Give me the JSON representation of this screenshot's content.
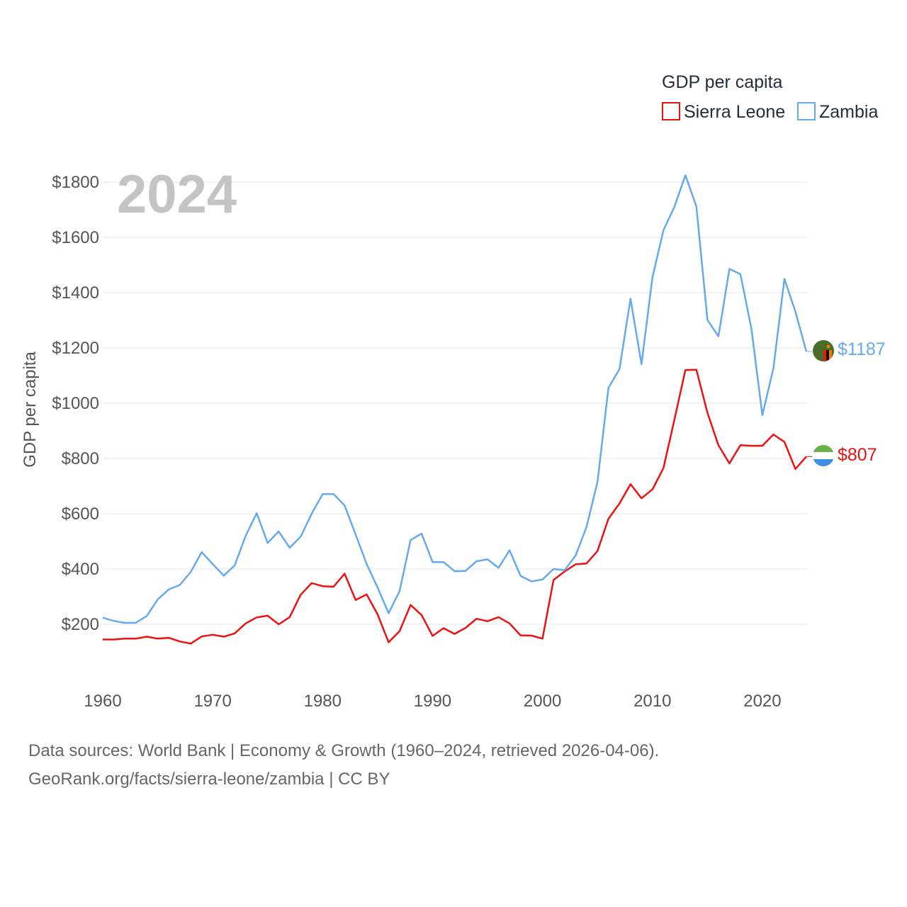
{
  "legend": {
    "title": "GDP per capita",
    "items": [
      {
        "label": "Sierra Leone",
        "color": "#ee1111"
      },
      {
        "label": "Zambia",
        "color": "#66aaee"
      }
    ]
  },
  "year_label": "2024",
  "sources": {
    "line1": "Data sources: World Bank | Economy & Growth (1960–2024, retrieved 2026-04-06).",
    "line2": "GeoRank.org/facts/sierra-leone/zambia | CC BY"
  },
  "end_labels": {
    "sierra_leone": "$807",
    "zambia": "$1187"
  },
  "flags": {
    "sierra_leone": "sierra-leone-flag-icon",
    "zambia": "zambia-flag-icon"
  },
  "chart_data": {
    "type": "line",
    "title": "",
    "xlabel": "",
    "ylabel": "GDP per capita",
    "xlim": [
      1960,
      2024
    ],
    "ylim": [
      0,
      1850
    ],
    "x_ticks": [
      1960,
      1970,
      1980,
      1990,
      2000,
      2010,
      2020
    ],
    "y_ticks": [
      200,
      400,
      600,
      800,
      1000,
      1200,
      1400,
      1600,
      1800
    ],
    "y_tick_labels": [
      "$200",
      "$400",
      "$600",
      "$800",
      "$1000",
      "$1200",
      "$1400",
      "$1600",
      "$1800"
    ],
    "grid": true,
    "legend_position": "top-right",
    "x": [
      1960,
      1961,
      1962,
      1963,
      1964,
      1965,
      1966,
      1967,
      1968,
      1969,
      1970,
      1971,
      1972,
      1973,
      1974,
      1975,
      1976,
      1977,
      1978,
      1979,
      1980,
      1981,
      1982,
      1983,
      1984,
      1985,
      1986,
      1987,
      1988,
      1989,
      1990,
      1991,
      1992,
      1993,
      1994,
      1995,
      1996,
      1997,
      1998,
      1999,
      2000,
      2001,
      2002,
      2003,
      2004,
      2005,
      2006,
      2007,
      2008,
      2009,
      2010,
      2011,
      2012,
      2013,
      2014,
      2015,
      2016,
      2017,
      2018,
      2019,
      2020,
      2021,
      2022,
      2023,
      2024
    ],
    "series": [
      {
        "name": "Sierra Leone",
        "color": "#ee1111",
        "values": [
          145,
          145,
          148,
          148,
          155,
          148,
          151,
          138,
          130,
          156,
          162,
          155,
          167,
          203,
          225,
          231,
          200,
          226,
          307,
          349,
          338,
          336,
          383,
          288,
          308,
          236,
          135,
          175,
          270,
          233,
          158,
          186,
          165,
          187,
          220,
          211,
          226,
          203,
          160,
          159,
          148,
          360,
          391,
          417,
          420,
          465,
          582,
          637,
          707,
          656,
          688,
          765,
          941,
          1120,
          1121,
          965,
          848,
          782,
          848,
          846,
          846,
          887,
          860,
          762,
          807
        ]
      },
      {
        "name": "Zambia",
        "color": "#66aaee",
        "values": [
          224,
          212,
          205,
          205,
          230,
          290,
          326,
          342,
          389,
          461,
          418,
          376,
          413,
          520,
          602,
          494,
          536,
          477,
          517,
          600,
          671,
          671,
          630,
          525,
          418,
          333,
          240,
          320,
          505,
          528,
          425,
          425,
          392,
          393,
          428,
          435,
          404,
          468,
          375,
          355,
          362,
          400,
          396,
          448,
          552,
          715,
          1056,
          1123,
          1378,
          1141,
          1456,
          1626,
          1711,
          1825,
          1711,
          1301,
          1242,
          1486,
          1467,
          1270,
          957,
          1127,
          1450,
          1331,
          1187
        ]
      }
    ]
  }
}
